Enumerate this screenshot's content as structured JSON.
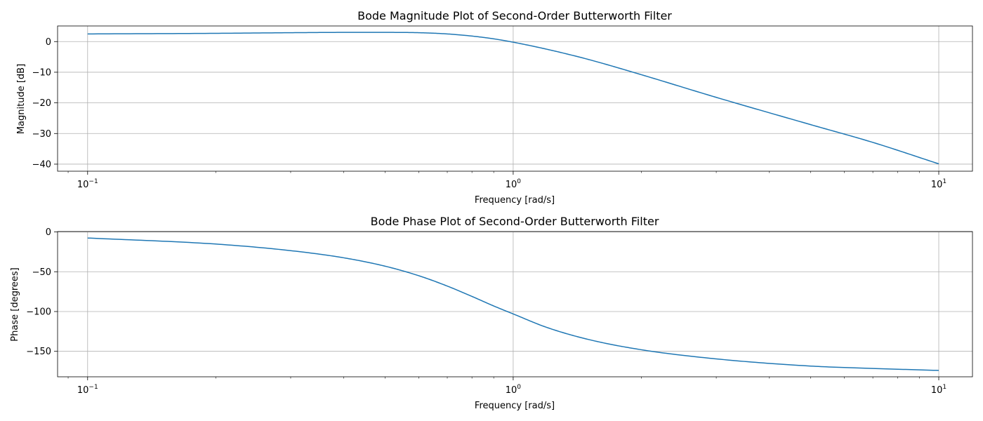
{
  "chart_data": [
    {
      "type": "line",
      "title": "Bode Magnitude Plot of Second-Order Butterworth Filter",
      "xlabel": "Frequency [rad/s]",
      "ylabel": "Magnitude [dB]",
      "xscale": "log",
      "xlim": [
        0.085,
        12.0
      ],
      "ylim": [
        -42.3,
        5.1
      ],
      "x_ticks": [
        {
          "value": 0.1,
          "base": "10",
          "exp": "−1"
        },
        {
          "value": 1,
          "base": "10",
          "exp": "0"
        },
        {
          "value": 10,
          "base": "10",
          "exp": "1"
        }
      ],
      "y_ticks": [
        {
          "value": 0,
          "label": "0"
        },
        {
          "value": -10,
          "label": "−10"
        },
        {
          "value": -20,
          "label": "−20"
        },
        {
          "value": -30,
          "label": "−30"
        },
        {
          "value": -40,
          "label": "−40"
        }
      ],
      "grid": true,
      "color": "#1f77b4",
      "x": [
        0.1,
        0.2,
        0.3,
        0.4,
        0.5,
        0.6,
        0.7,
        0.8,
        0.9,
        1.0,
        1.2,
        1.5,
        2,
        3,
        5,
        7,
        10
      ],
      "values": [
        2.5,
        2.7,
        2.9,
        3.0,
        3.0,
        2.9,
        2.5,
        1.8,
        0.9,
        -0.2,
        -2.5,
        -5.8,
        -10.8,
        -18.2,
        -27.1,
        -32.9,
        -39.9
      ]
    },
    {
      "type": "line",
      "title": "Bode Phase Plot of Second-Order Butterworth Filter",
      "xlabel": "Frequency [rad/s]",
      "ylabel": "Phase [degrees]",
      "xscale": "log",
      "xlim": [
        0.085,
        12.0
      ],
      "ylim": [
        -182.0,
        0.5
      ],
      "x_ticks": [
        {
          "value": 0.1,
          "base": "10",
          "exp": "−1"
        },
        {
          "value": 1,
          "base": "10",
          "exp": "0"
        },
        {
          "value": 10,
          "base": "10",
          "exp": "1"
        }
      ],
      "y_ticks": [
        {
          "value": 0,
          "label": "0"
        },
        {
          "value": -50,
          "label": "−50"
        },
        {
          "value": -100,
          "label": "−100"
        },
        {
          "value": -150,
          "label": "−150"
        }
      ],
      "grid": true,
      "color": "#1f77b4",
      "x": [
        0.1,
        0.2,
        0.3,
        0.4,
        0.5,
        0.6,
        0.7,
        0.8,
        0.9,
        1.0,
        1.2,
        1.5,
        2,
        3,
        5,
        7,
        10
      ],
      "values": [
        -7.6,
        -15.2,
        -23.5,
        -32.5,
        -43.0,
        -55.0,
        -68.0,
        -81.0,
        -93.0,
        -103.0,
        -120.0,
        -135.0,
        -148.0,
        -159.5,
        -168.5,
        -171.5,
        -174.0
      ]
    }
  ]
}
